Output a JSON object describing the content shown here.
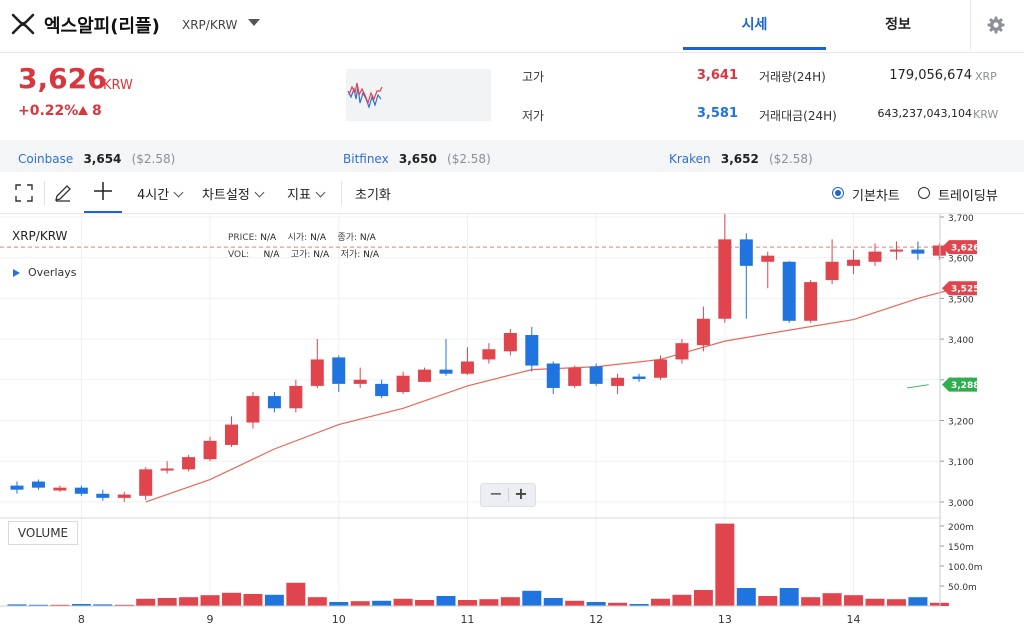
{
  "header": {
    "coin_name": "엑스알피(리플)",
    "pair": "XRP/KRW",
    "tabs": [
      "시세",
      "정보"
    ]
  },
  "price": {
    "current": "3,626",
    "unit": "KRW",
    "change_pct": "+0.22%",
    "change_abs": "8"
  },
  "stats": {
    "high_label": "고가",
    "high": "3,641",
    "low_label": "저가",
    "low": "3,581",
    "volume_label": "거래량(24H)",
    "volume": "179,056,674",
    "volume_unit": "XRP",
    "amount_label": "거래대금(24H)",
    "amount": "643,237,043,104",
    "amount_unit": "KRW"
  },
  "exchanges": [
    {
      "name": "Coinbase",
      "price": "3,654",
      "usd": "($2.58)"
    },
    {
      "name": "Bitfinex",
      "price": "3,650",
      "usd": "($2.58)"
    },
    {
      "name": "Kraken",
      "price": "3,652",
      "usd": "($2.58)"
    }
  ],
  "toolbar": {
    "interval": "4시간",
    "chart_settings": "차트설정",
    "indicators": "지표",
    "reset": "초기화",
    "basic_chart": "기본차트",
    "trading_view": "트레이딩뷰",
    "selected_mode": "basic"
  },
  "legend": {
    "pair": "XRP/KRW",
    "price_label": "PRICE:",
    "price": "N/A",
    "open_label": "시가:",
    "open": "N/A",
    "close_label": "종가:",
    "close": "N/A",
    "vol_label": "VOL:",
    "vol": "N/A",
    "high_label": "고가:",
    "high": "N/A",
    "low_label": "저가:",
    "low": "N/A",
    "overlays": "Overlays",
    "volume_tag": "VOLUME"
  },
  "colors": {
    "up": "#e0444c",
    "down": "#1f74e0",
    "ma": "#e8685c",
    "accent": "#1a63d8",
    "green": "#2fae4f"
  },
  "chart_data": {
    "type": "candlestick",
    "y_axis_ticks": [
      "3,700",
      "3,600",
      "3,500",
      "3,400",
      "3,300",
      "3,200",
      "3,100",
      "3,000"
    ],
    "ylim": [
      2995,
      3705
    ],
    "x_tick_labels": [
      "8",
      "9",
      "10",
      "11",
      "12",
      "13",
      "14"
    ],
    "price_tags": [
      {
        "label": "3,626",
        "value": 3626,
        "color": "#e0444c"
      },
      {
        "label": "3,525",
        "value": 3525,
        "color": "#e0444c"
      },
      {
        "label": "3,288",
        "value": 3288,
        "color": "#2fae4f"
      }
    ],
    "volume_ticks": [
      "200m",
      "150m",
      "100.0m",
      "50.0m"
    ],
    "vol_max": 240,
    "candles": [
      {
        "o": 3040,
        "c": 3030,
        "h": 3050,
        "l": 3020
      },
      {
        "o": 3050,
        "c": 3035,
        "h": 3055,
        "l": 3030
      },
      {
        "o": 3028,
        "c": 3035,
        "h": 3040,
        "l": 3025
      },
      {
        "o": 3035,
        "c": 3020,
        "h": 3040,
        "l": 3015
      },
      {
        "o": 3020,
        "c": 3010,
        "h": 3030,
        "l": 3003
      },
      {
        "o": 3010,
        "c": 3018,
        "h": 3025,
        "l": 3000
      },
      {
        "o": 3015,
        "c": 3080,
        "h": 3085,
        "l": 3005
      },
      {
        "o": 3080,
        "c": 3082,
        "h": 3100,
        "l": 3070
      },
      {
        "o": 3080,
        "c": 3110,
        "h": 3115,
        "l": 3075
      },
      {
        "o": 3105,
        "c": 3150,
        "h": 3160,
        "l": 3100
      },
      {
        "o": 3140,
        "c": 3190,
        "h": 3210,
        "l": 3135
      },
      {
        "o": 3195,
        "c": 3260,
        "h": 3270,
        "l": 3180
      },
      {
        "o": 3260,
        "c": 3230,
        "h": 3270,
        "l": 3220
      },
      {
        "o": 3230,
        "c": 3285,
        "h": 3300,
        "l": 3220
      },
      {
        "o": 3285,
        "c": 3350,
        "h": 3400,
        "l": 3280
      },
      {
        "o": 3355,
        "c": 3290,
        "h": 3360,
        "l": 3270
      },
      {
        "o": 3290,
        "c": 3300,
        "h": 3330,
        "l": 3280
      },
      {
        "o": 3290,
        "c": 3260,
        "h": 3300,
        "l": 3255
      },
      {
        "o": 3270,
        "c": 3310,
        "h": 3320,
        "l": 3265
      },
      {
        "o": 3295,
        "c": 3325,
        "h": 3330,
        "l": 3295
      },
      {
        "o": 3325,
        "c": 3315,
        "h": 3400,
        "l": 3310
      },
      {
        "o": 3315,
        "c": 3345,
        "h": 3380,
        "l": 3312
      },
      {
        "o": 3350,
        "c": 3375,
        "h": 3390,
        "l": 3340
      },
      {
        "o": 3370,
        "c": 3415,
        "h": 3425,
        "l": 3360
      },
      {
        "o": 3410,
        "c": 3335,
        "h": 3430,
        "l": 3320
      },
      {
        "o": 3340,
        "c": 3280,
        "h": 3345,
        "l": 3265
      },
      {
        "o": 3285,
        "c": 3330,
        "h": 3335,
        "l": 3280
      },
      {
        "o": 3333,
        "c": 3290,
        "h": 3340,
        "l": 3285
      },
      {
        "o": 3285,
        "c": 3305,
        "h": 3315,
        "l": 3265
      },
      {
        "o": 3308,
        "c": 3302,
        "h": 3315,
        "l": 3295
      },
      {
        "o": 3305,
        "c": 3350,
        "h": 3360,
        "l": 3300
      },
      {
        "o": 3350,
        "c": 3390,
        "h": 3400,
        "l": 3340
      },
      {
        "o": 3385,
        "c": 3450,
        "h": 3480,
        "l": 3370
      },
      {
        "o": 3450,
        "c": 3645,
        "h": 3710,
        "l": 3440
      },
      {
        "o": 3645,
        "c": 3580,
        "h": 3660,
        "l": 3450
      },
      {
        "o": 3590,
        "c": 3605,
        "h": 3615,
        "l": 3525
      },
      {
        "o": 3590,
        "c": 3445,
        "h": 3592,
        "l": 3440
      },
      {
        "o": 3445,
        "c": 3540,
        "h": 3545,
        "l": 3440
      },
      {
        "o": 3545,
        "c": 3590,
        "h": 3645,
        "l": 3535
      },
      {
        "o": 3580,
        "c": 3595,
        "h": 3620,
        "l": 3560
      },
      {
        "o": 3590,
        "c": 3615,
        "h": 3635,
        "l": 3580
      },
      {
        "o": 3615,
        "c": 3620,
        "h": 3640,
        "l": 3595
      },
      {
        "o": 3620,
        "c": 3610,
        "h": 3640,
        "l": 3595
      },
      {
        "o": 3605,
        "c": 3630,
        "h": 3635,
        "l": 3595
      }
    ],
    "volumes": [
      4,
      3,
      3,
      5,
      4,
      3,
      18,
      20,
      22,
      27,
      33,
      30,
      28,
      58,
      22,
      10,
      12,
      13,
      18,
      15,
      25,
      15,
      17,
      22,
      38,
      20,
      13,
      10,
      8,
      5,
      18,
      28,
      40,
      206,
      45,
      25,
      45,
      22,
      32,
      27,
      18,
      17,
      22,
      8
    ],
    "ma": [
      {
        "i": 6,
        "v": 3000
      },
      {
        "i": 9,
        "v": 3055
      },
      {
        "i": 12,
        "v": 3130
      },
      {
        "i": 15,
        "v": 3190
      },
      {
        "i": 18,
        "v": 3230
      },
      {
        "i": 21,
        "v": 3285
      },
      {
        "i": 24,
        "v": 3325
      },
      {
        "i": 27,
        "v": 3332
      },
      {
        "i": 30,
        "v": 3350
      },
      {
        "i": 33,
        "v": 3395
      },
      {
        "i": 36,
        "v": 3422
      },
      {
        "i": 39,
        "v": 3448
      },
      {
        "i": 42,
        "v": 3500
      },
      {
        "i": 44,
        "v": 3528
      }
    ],
    "green_line": [
      {
        "i": 41.5,
        "v": 3280
      },
      {
        "i": 42.5,
        "v": 3288
      }
    ]
  }
}
